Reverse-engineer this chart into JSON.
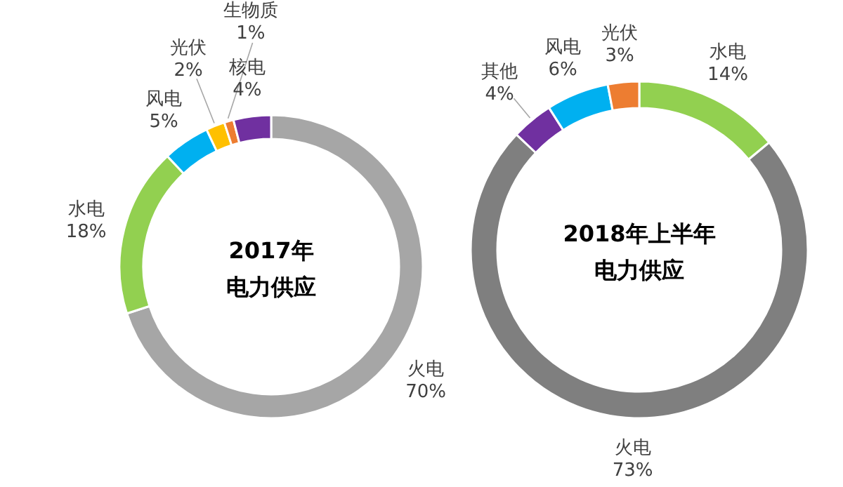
{
  "chart_data": [
    {
      "type": "donut",
      "title": "2017年",
      "subtitle": "电力供应",
      "categories": [
        "火电",
        "水电",
        "风电",
        "光伏",
        "生物质",
        "核电"
      ],
      "values": [
        70,
        18,
        5,
        2,
        1,
        4
      ],
      "value_labels": [
        "70%",
        "18%",
        "5%",
        "2%",
        "1%",
        "4%"
      ],
      "colors": [
        "#a6a6a6",
        "#92d050",
        "#00b0f0",
        "#ffc000",
        "#ed7d31",
        "#7030a0"
      ]
    },
    {
      "type": "donut",
      "title": "2018年上半年",
      "subtitle": "电力供应",
      "categories": [
        "水电",
        "火电",
        "其他",
        "风电",
        "光伏"
      ],
      "values": [
        14,
        73,
        4,
        6,
        3
      ],
      "value_labels": [
        "14%",
        "73%",
        "4%",
        "6%",
        "3%"
      ],
      "colors": [
        "#92d050",
        "#7f7f7f",
        "#7030a0",
        "#00b0f0",
        "#ed7d31"
      ]
    }
  ]
}
